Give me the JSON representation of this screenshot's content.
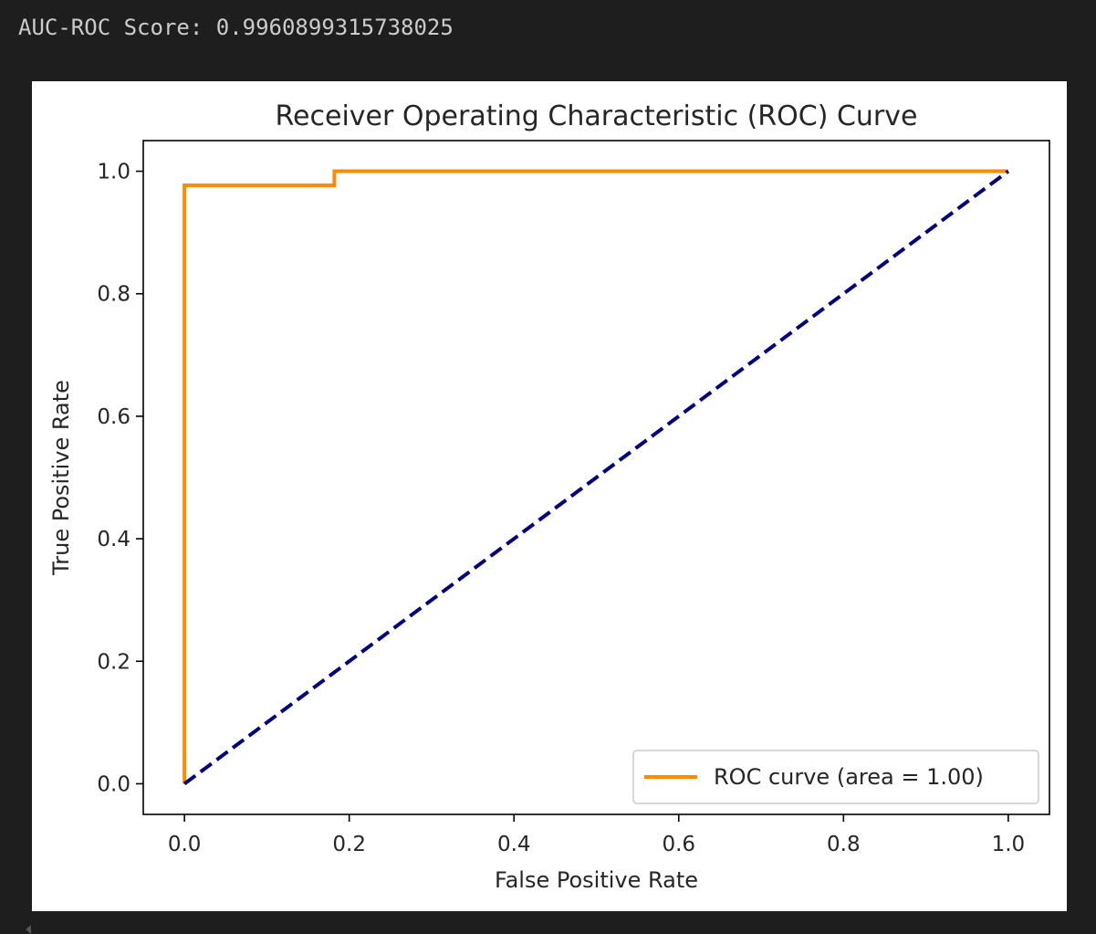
{
  "output": {
    "text": "AUC-ROC Score: 0.9960899315738025"
  },
  "chart_data": {
    "type": "line",
    "title": "Receiver Operating Characteristic (ROC) Curve",
    "xlabel": "False Positive Rate",
    "ylabel": "True Positive Rate",
    "xlim": [
      -0.05,
      1.05
    ],
    "ylim": [
      -0.05,
      1.05
    ],
    "x_ticks": [
      0.0,
      0.2,
      0.4,
      0.6,
      0.8,
      1.0
    ],
    "y_ticks": [
      0.0,
      0.2,
      0.4,
      0.6,
      0.8,
      1.0
    ],
    "x_tick_labels": [
      "0.0",
      "0.2",
      "0.4",
      "0.6",
      "0.8",
      "1.0"
    ],
    "y_tick_labels": [
      "0.0",
      "0.2",
      "0.4",
      "0.6",
      "0.8",
      "1.0"
    ],
    "grid": false,
    "legend_position": "lower right",
    "series": [
      {
        "name": "ROC curve (area = 1.00)",
        "color": "#ff8c00",
        "style": "solid",
        "x": [
          0.0,
          0.0,
          0.0,
          0.182,
          0.182,
          1.0
        ],
        "y": [
          0.0,
          0.0,
          0.977,
          0.977,
          1.0,
          1.0
        ]
      },
      {
        "color": "#000080",
        "style": "dashed",
        "x": [
          0.0,
          1.0
        ],
        "y": [
          0.0,
          1.0
        ]
      }
    ]
  }
}
